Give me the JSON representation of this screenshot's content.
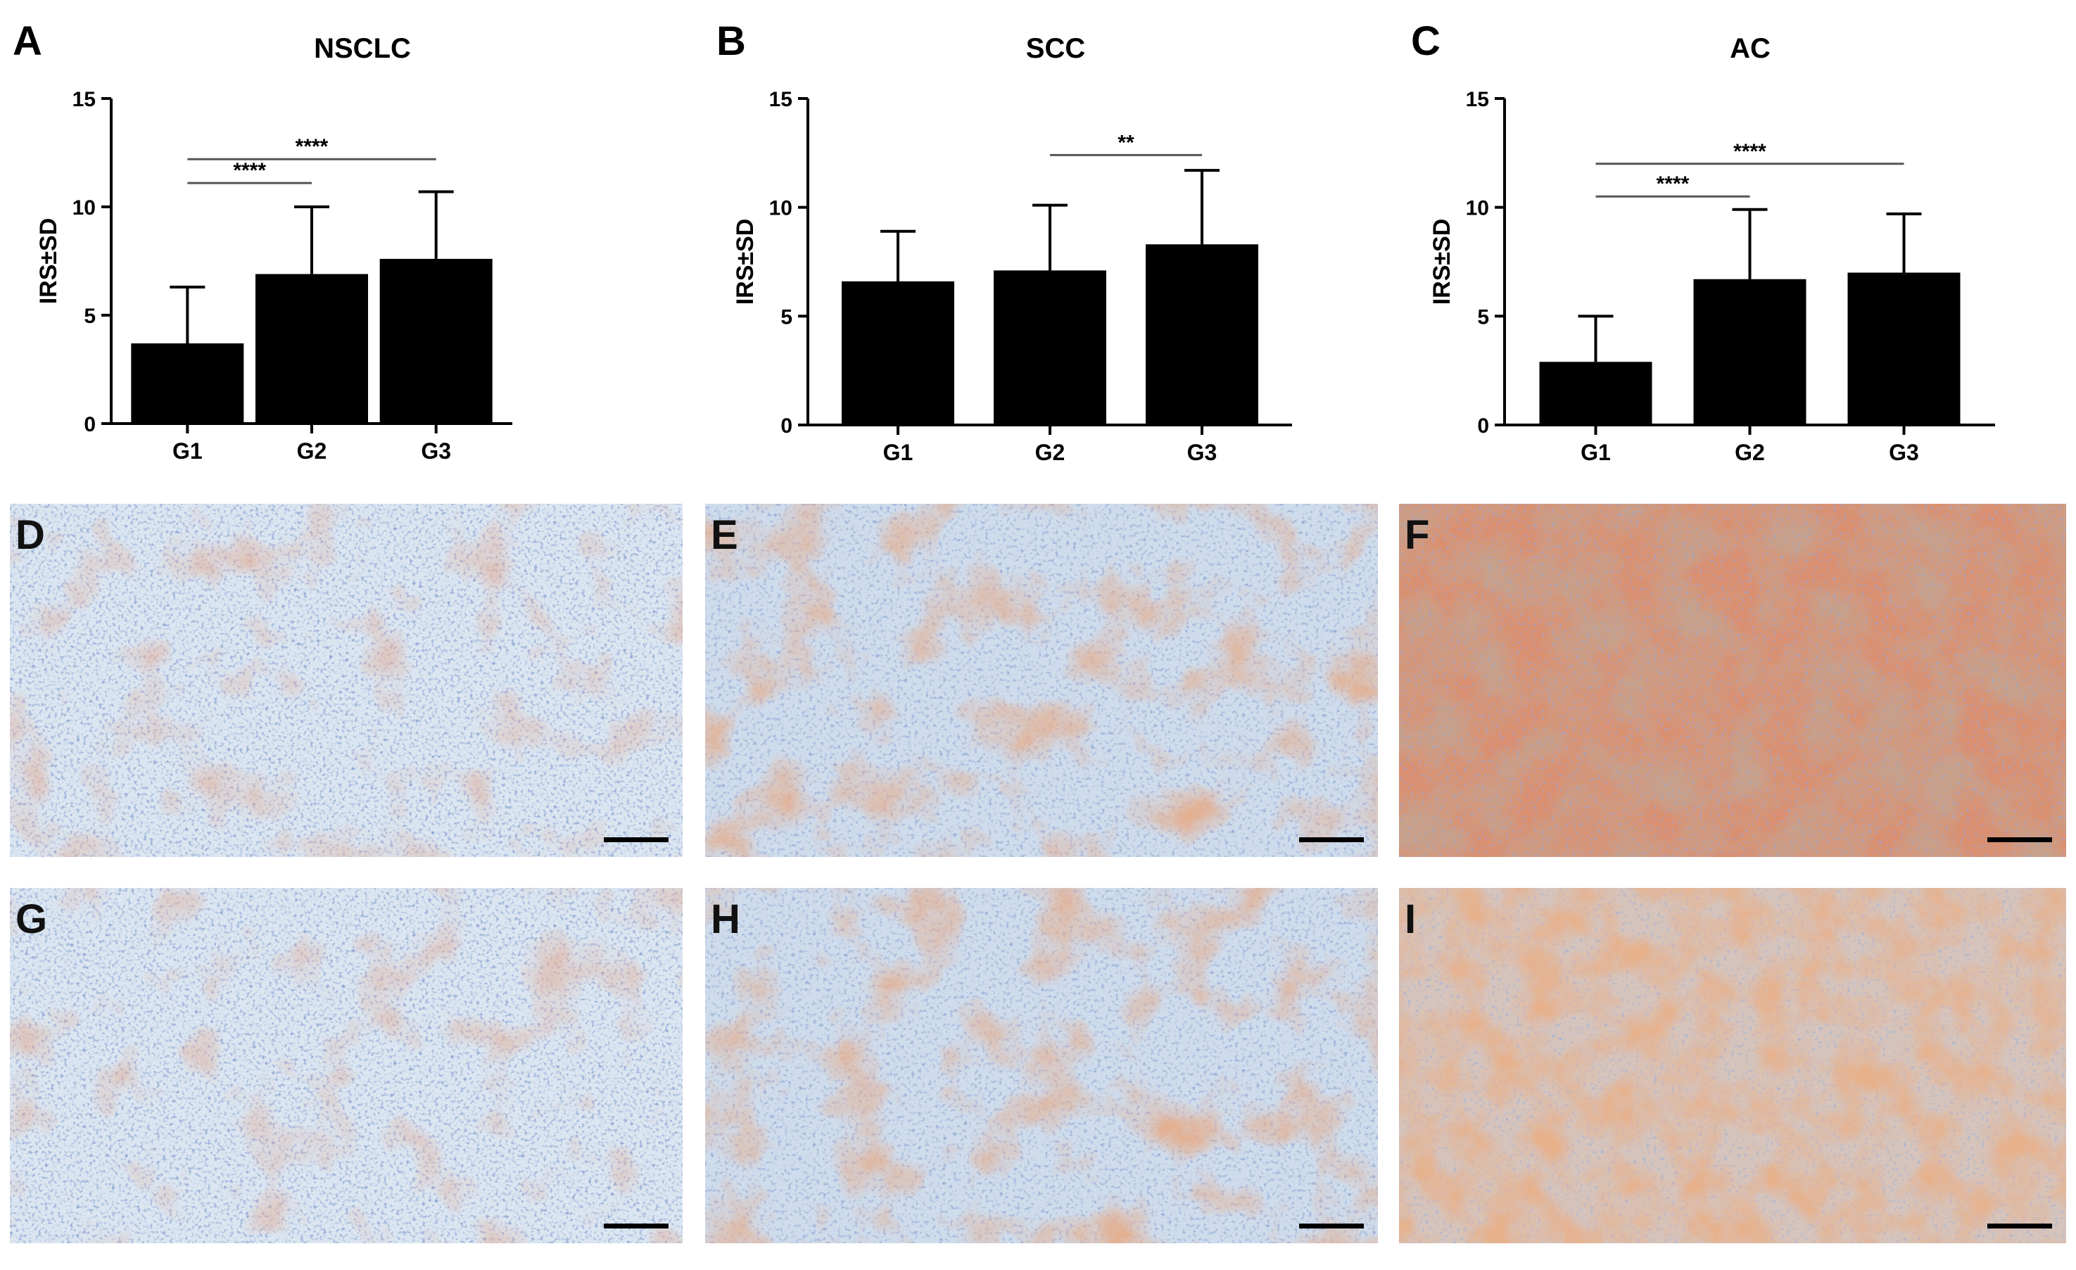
{
  "chart_data": [
    {
      "panel": "A",
      "type": "bar",
      "title": "NSCLC",
      "ylabel": "IRS±SD",
      "xlabel": "",
      "categories": [
        "G1",
        "G2",
        "G3"
      ],
      "values": [
        3.7,
        6.9,
        7.6
      ],
      "error": [
        2.6,
        3.1,
        3.1
      ],
      "ylim": [
        0,
        15
      ],
      "yticks": [
        "0",
        "5",
        "10",
        "15"
      ],
      "significance": [
        {
          "from": "G1",
          "to": "G2",
          "label": "****",
          "level": 11.1
        },
        {
          "from": "G1",
          "to": "G3",
          "label": "****",
          "level": 12.2
        }
      ]
    },
    {
      "panel": "B",
      "type": "bar",
      "title": "SCC",
      "ylabel": "IRS±SD",
      "xlabel": "",
      "categories": [
        "G1",
        "G2",
        "G3"
      ],
      "values": [
        6.6,
        7.1,
        8.3
      ],
      "error": [
        2.3,
        3.0,
        3.4
      ],
      "ylim": [
        0,
        15
      ],
      "yticks": [
        "0",
        "5",
        "10",
        "15"
      ],
      "significance": [
        {
          "from": "G2",
          "to": "G3",
          "label": "**",
          "level": 12.4
        }
      ]
    },
    {
      "panel": "C",
      "type": "bar",
      "title": "AC",
      "ylabel": "IRS±SD",
      "xlabel": "",
      "categories": [
        "G1",
        "G2",
        "G3"
      ],
      "values": [
        2.9,
        6.7,
        7.0
      ],
      "error": [
        2.1,
        3.2,
        2.7
      ],
      "ylim": [
        0,
        15
      ],
      "yticks": [
        "0",
        "5",
        "10",
        "15"
      ],
      "significance": [
        {
          "from": "G1",
          "to": "G2",
          "label": "****",
          "level": 10.5
        },
        {
          "from": "G1",
          "to": "G3",
          "label": "****",
          "level": 12.0
        }
      ]
    }
  ],
  "images": [
    {
      "panel": "D",
      "stain": "weak",
      "scale_bar": true
    },
    {
      "panel": "E",
      "stain": "moderate",
      "scale_bar": true
    },
    {
      "panel": "F",
      "stain": "strong",
      "scale_bar": true
    },
    {
      "panel": "G",
      "stain": "weak",
      "scale_bar": true
    },
    {
      "panel": "H",
      "stain": "moderate",
      "scale_bar": true
    },
    {
      "panel": "I",
      "stain": "moderate-strong",
      "scale_bar": true
    }
  ],
  "colors": {
    "bar": "#000000",
    "axis": "#000000",
    "sig_line": "#555555",
    "tissue_blue": "#9cb8d6",
    "nucleus_blue": "#3b5a9a",
    "stain_brown": "#c0603a",
    "background_light": "#dfe8f2"
  }
}
